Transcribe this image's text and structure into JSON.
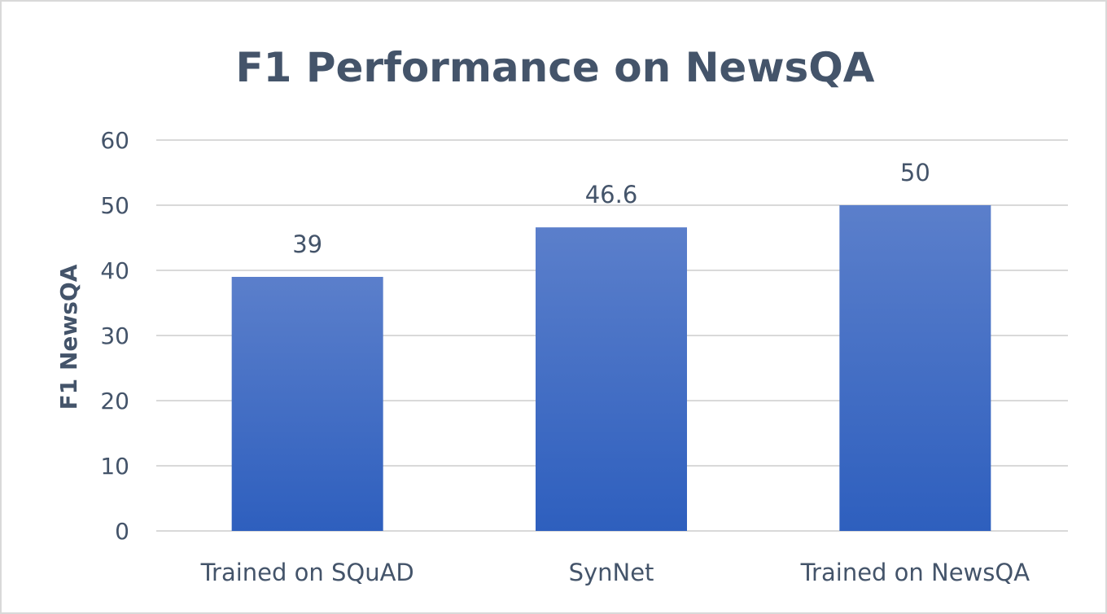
{
  "chart_data": {
    "type": "bar",
    "title": "F1 Performance on NewsQA",
    "xlabel": "",
    "ylabel": "F1 NewsQA",
    "categories": [
      "Trained on SQuAD",
      "SynNet",
      "Trained on NewsQA"
    ],
    "values": [
      39,
      46.6,
      50
    ],
    "data_labels": [
      "39",
      "46.6",
      "50"
    ],
    "ylim": [
      0,
      60
    ],
    "yticks": [
      0,
      10,
      20,
      30,
      40,
      50,
      60
    ],
    "grid": true,
    "legend": "none",
    "colors": {
      "bar_top": "#5b7fcb",
      "bar_bottom": "#2e5fbe",
      "text": "#44546a",
      "grid": "#d9d9d9"
    }
  }
}
